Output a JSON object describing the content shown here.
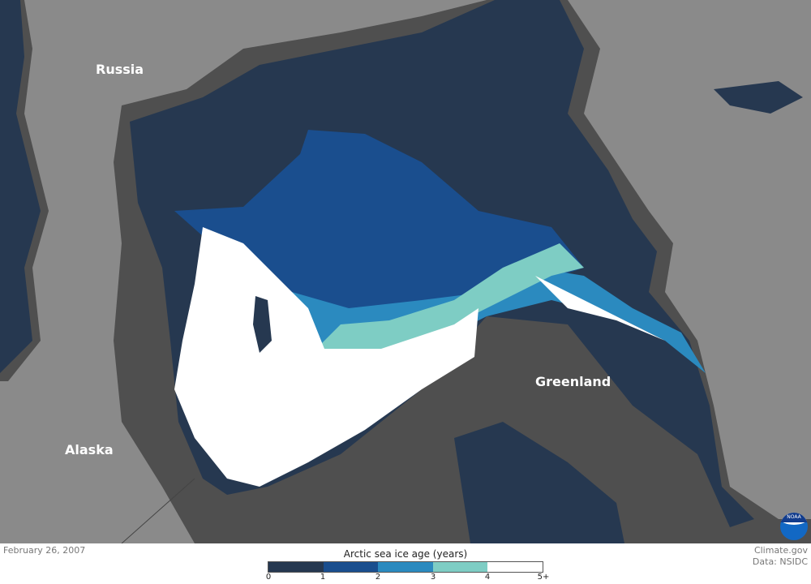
{
  "map": {
    "labels": {
      "russia": "Russia",
      "greenland": "Greenland",
      "alaska": "Alaska"
    },
    "colors": {
      "land": "#8a8a8a",
      "ocean": "#4f4f4f",
      "age_0_1": "#263850",
      "age_1_2": "#1a4e8e",
      "age_2_3": "#2b8abf",
      "age_3_4": "#7ecdc4",
      "age_5_plus": "#ffffff"
    }
  },
  "footer": {
    "date": "February 26, 2007",
    "credit_line1": "Climate.gov",
    "credit_line2": "Data: NSIDC",
    "logo_text": "NOAA"
  },
  "legend": {
    "title": "Arctic sea ice age (years)",
    "ticks": [
      "0",
      "1",
      "2",
      "3",
      "4",
      "5+"
    ],
    "colors": [
      "#263850",
      "#1a4e8e",
      "#2b8abf",
      "#7ecdc4",
      "#ffffff"
    ]
  }
}
